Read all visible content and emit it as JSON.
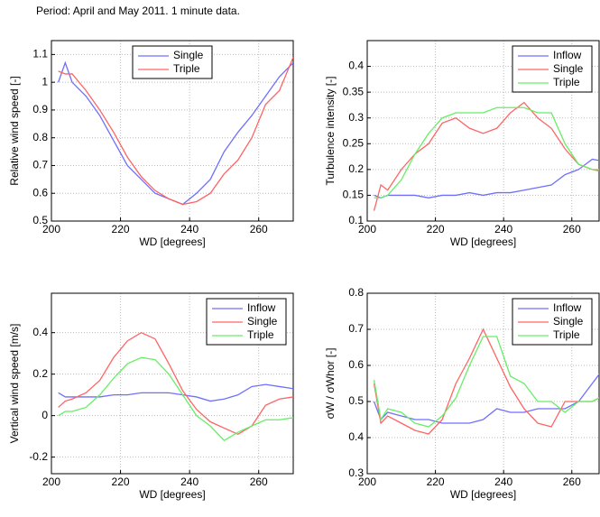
{
  "title": "Period: April and May 2011. 1 minute data.",
  "chart_data": [
    {
      "type": "line",
      "xlabel": "WD [degrees]",
      "ylabel": "Relative wind speed [-]",
      "x": [
        202,
        204,
        206,
        210,
        214,
        218,
        222,
        226,
        230,
        234,
        238,
        242,
        246,
        250,
        254,
        258,
        262,
        266,
        270
      ],
      "xlim": [
        200,
        270
      ],
      "xticks": [
        200,
        220,
        240,
        260
      ],
      "ylim": [
        0.5,
        1.15
      ],
      "yticks": [
        0.5,
        0.6,
        0.7,
        0.8,
        0.9,
        {
          "value": 1,
          "label": "1"
        },
        1.1
      ],
      "grid": true,
      "legend": "upper center",
      "series": [
        {
          "name": "Single",
          "color": "#6f6fff",
          "values": [
            1.0,
            1.07,
            1.0,
            0.95,
            0.88,
            0.79,
            0.7,
            0.65,
            0.6,
            0.58,
            0.56,
            0.6,
            0.65,
            0.75,
            0.82,
            0.88,
            0.95,
            1.02,
            1.07
          ]
        },
        {
          "name": "Triple",
          "color": "#ff6464",
          "values": [
            1.04,
            1.03,
            1.03,
            0.97,
            0.9,
            0.82,
            0.73,
            0.66,
            0.61,
            0.58,
            0.56,
            0.57,
            0.6,
            0.67,
            0.72,
            0.8,
            0.92,
            0.97,
            1.09
          ]
        }
      ]
    },
    {
      "type": "line",
      "xlabel": "WD [degrees]",
      "ylabel": "Turbulence intensity [-]",
      "x": [
        202,
        204,
        206,
        210,
        214,
        218,
        222,
        226,
        230,
        234,
        238,
        242,
        246,
        250,
        254,
        258,
        262,
        266,
        270
      ],
      "xlim": [
        200,
        268
      ],
      "xticks": [
        200,
        220,
        240,
        260
      ],
      "ylim": [
        0.1,
        0.45
      ],
      "yticks": [
        0.1,
        0.15,
        0.2,
        0.25,
        0.3,
        0.35,
        0.4
      ],
      "grid": true,
      "legend": "upper right",
      "series": [
        {
          "name": "Inflow",
          "color": "#6f6fff",
          "values": [
            0.15,
            0.145,
            0.15,
            0.15,
            0.15,
            0.145,
            0.15,
            0.15,
            0.155,
            0.15,
            0.155,
            0.155,
            0.16,
            0.165,
            0.17,
            0.19,
            0.2,
            0.22,
            0.215
          ]
        },
        {
          "name": "Single",
          "color": "#ff6464",
          "values": [
            0.12,
            0.17,
            0.16,
            0.2,
            0.23,
            0.25,
            0.29,
            0.3,
            0.28,
            0.27,
            0.28,
            0.31,
            0.33,
            0.3,
            0.28,
            0.24,
            0.21,
            0.2,
            0.195
          ]
        },
        {
          "name": "Triple",
          "color": "#66ee66",
          "values": [
            0.145,
            0.145,
            0.15,
            0.18,
            0.23,
            0.27,
            0.3,
            0.31,
            0.31,
            0.31,
            0.32,
            0.32,
            0.32,
            0.31,
            0.31,
            0.25,
            0.21,
            0.2,
            0.2
          ]
        }
      ]
    },
    {
      "type": "line",
      "xlabel": "WD [degrees]",
      "ylabel": "Vertical wind speed [m/s]",
      "x": [
        202,
        204,
        206,
        210,
        214,
        218,
        222,
        226,
        230,
        234,
        238,
        242,
        246,
        250,
        254,
        258,
        262,
        266,
        270
      ],
      "xlim": [
        200,
        270
      ],
      "xticks": [
        200,
        220,
        240,
        260
      ],
      "ylim": [
        -0.28,
        0.59
      ],
      "yticks": [
        -0.2,
        0,
        0.2,
        0.4
      ],
      "grid": true,
      "legend": "upper right",
      "series": [
        {
          "name": "Inflow",
          "color": "#6f6fff",
          "values": [
            0.11,
            0.09,
            0.09,
            0.09,
            0.09,
            0.1,
            0.1,
            0.11,
            0.11,
            0.11,
            0.1,
            0.09,
            0.07,
            0.08,
            0.1,
            0.14,
            0.15,
            0.14,
            0.13
          ]
        },
        {
          "name": "Single",
          "color": "#ff6464",
          "values": [
            0.04,
            0.07,
            0.08,
            0.11,
            0.17,
            0.28,
            0.36,
            0.4,
            0.37,
            0.25,
            0.12,
            0.03,
            -0.03,
            -0.06,
            -0.09,
            -0.05,
            0.05,
            0.08,
            0.09
          ]
        },
        {
          "name": "Triple",
          "color": "#66ee66",
          "values": [
            0,
            0.02,
            0.02,
            0.04,
            0.1,
            0.18,
            0.25,
            0.28,
            0.27,
            0.2,
            0.1,
            0,
            -0.05,
            -0.12,
            -0.08,
            -0.05,
            -0.02,
            -0.02,
            -0.01
          ]
        }
      ]
    },
    {
      "type": "line",
      "xlabel": "WD [degrees]",
      "ylabel": "σW / σWhor [-]",
      "x": [
        202,
        204,
        206,
        210,
        214,
        218,
        222,
        226,
        230,
        234,
        238,
        242,
        246,
        250,
        254,
        258,
        262,
        266,
        270
      ],
      "xlim": [
        200,
        268
      ],
      "xticks": [
        200,
        220,
        240,
        260
      ],
      "ylim": [
        0.3,
        0.8
      ],
      "yticks": [
        0.3,
        0.4,
        0.5,
        0.6,
        0.7,
        0.8
      ],
      "grid": true,
      "legend": "upper right",
      "series": [
        {
          "name": "Inflow",
          "color": "#6f6fff",
          "values": [
            0.5,
            0.45,
            0.47,
            0.46,
            0.45,
            0.45,
            0.44,
            0.44,
            0.44,
            0.45,
            0.48,
            0.47,
            0.47,
            0.48,
            0.48,
            0.48,
            0.5,
            0.55,
            0.6
          ]
        },
        {
          "name": "Single",
          "color": "#ff6464",
          "values": [
            0.55,
            0.44,
            0.46,
            0.44,
            0.42,
            0.41,
            0.45,
            0.55,
            0.62,
            0.7,
            0.62,
            0.54,
            0.48,
            0.44,
            0.43,
            0.5,
            0.5,
            0.5,
            0.52
          ]
        },
        {
          "name": "Triple",
          "color": "#66ee66",
          "values": [
            0.56,
            0.45,
            0.48,
            0.47,
            0.44,
            0.43,
            0.46,
            0.51,
            0.6,
            0.68,
            0.68,
            0.57,
            0.55,
            0.5,
            0.5,
            0.47,
            0.5,
            0.5,
            0.52
          ]
        }
      ]
    }
  ]
}
